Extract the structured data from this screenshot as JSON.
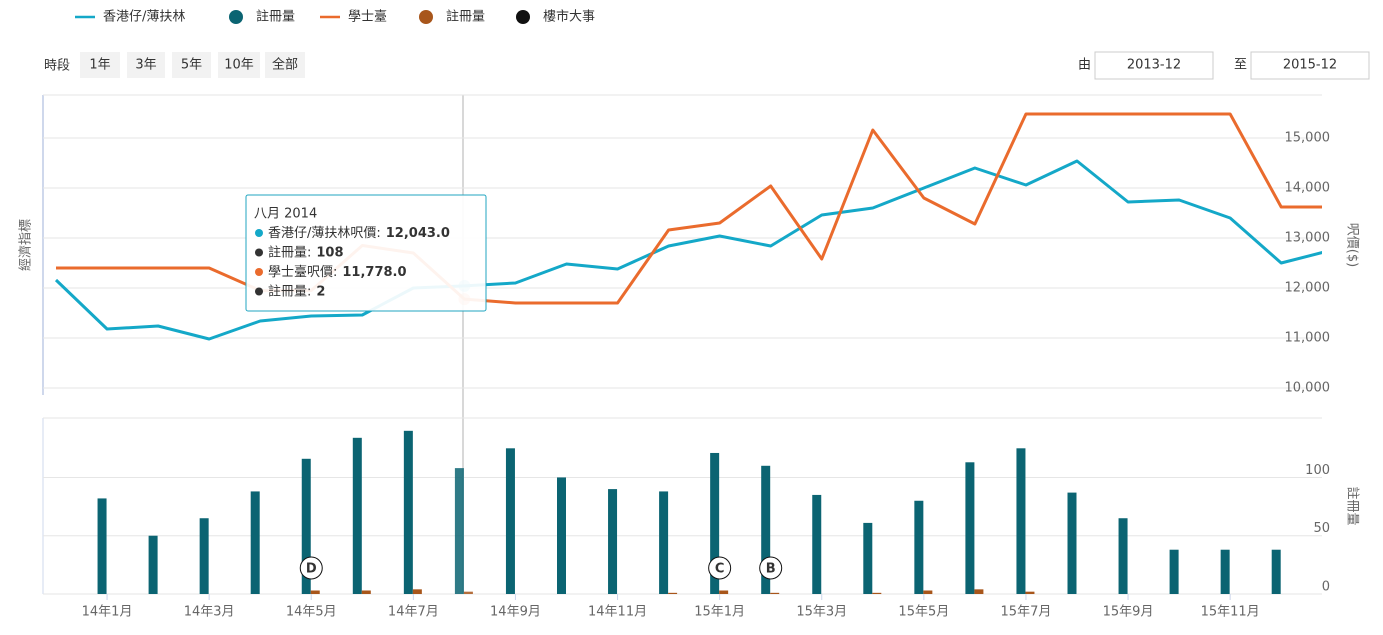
{
  "controls": {
    "period_label": "時段",
    "buttons": [
      "1年",
      "3年",
      "5年",
      "10年",
      "全部"
    ],
    "from_label": "由",
    "from": "2013-12",
    "to_label": "至",
    "to": "2015-12"
  },
  "chart_data": {
    "type": "line",
    "y_label": "經濟指標",
    "y2_label": "呎價($)",
    "y3_label": "註冊量",
    "categories": [
      null,
      "14年1月",
      null,
      "14年3月",
      null,
      "14年5月",
      null,
      "14年7月",
      null,
      "14年9月",
      null,
      "14年11月",
      null,
      "15年1月",
      null,
      "15年3月",
      null,
      "15年5月",
      null,
      "15年7月",
      null,
      "15年9月",
      null,
      "15年11月",
      null,
      null
    ],
    "series": [
      {
        "name": "香港仔/薄扶林",
        "color": "#14a8c8",
        "type": "line",
        "values": [
          12160,
          11180,
          11240,
          10980,
          11340,
          11440,
          11460,
          12000,
          12043,
          12100,
          12480,
          12380,
          12840,
          13040,
          12840,
          13460,
          13600,
          14000,
          14400,
          14060,
          14540,
          13720,
          13760,
          13400,
          12500,
          12760
        ]
      },
      {
        "name": "註冊量",
        "color": "#0b6472",
        "type": "bar",
        "axis": "y2",
        "values": [
          null,
          82,
          50,
          65,
          88,
          116,
          134,
          140,
          108,
          125,
          100,
          90,
          88,
          121,
          110,
          85,
          61,
          80,
          113,
          125,
          87,
          65,
          38,
          38,
          38,
          null
        ]
      },
      {
        "name": "學士臺",
        "color": "#ea6b2d",
        "type": "line",
        "values": [
          12400,
          12400,
          12400,
          12400,
          11950,
          11950,
          12850,
          12700,
          11778,
          11700,
          11700,
          11700,
          13160,
          13300,
          14040,
          12580,
          15160,
          13800,
          13280,
          15480,
          15480,
          15480,
          15480,
          15480,
          13620,
          13620
        ]
      },
      {
        "name": "註冊量",
        "color": "#a8561b",
        "type": "bar",
        "axis": "y2",
        "values": [
          null,
          null,
          null,
          null,
          null,
          3,
          3,
          4,
          2,
          null,
          null,
          null,
          1,
          3,
          1,
          null,
          1,
          3,
          4,
          2,
          null,
          null,
          null,
          null,
          null,
          null
        ]
      }
    ],
    "events": {
      "name": "樓市大事",
      "color": "#111111",
      "points": [
        {
          "index": 5,
          "label": "D"
        },
        {
          "index": 13,
          "label": "C"
        },
        {
          "index": 14,
          "label": "B"
        }
      ]
    },
    "ylim": [
      9860,
      15860
    ],
    "yticks": [
      {
        "value": 10000,
        "label": "10,000"
      },
      {
        "value": 11000,
        "label": "11,000"
      },
      {
        "value": 12000,
        "label": "12,000"
      },
      {
        "value": 13000,
        "label": "13,000"
      },
      {
        "value": 14000,
        "label": "14,000"
      },
      {
        "value": 15000,
        "label": "15,000"
      }
    ],
    "y2lim": [
      0,
      151
    ],
    "y2ticks": [
      0,
      50,
      100
    ],
    "grid": true,
    "tooltip": {
      "title": "八月 2014",
      "rows": [
        {
          "label": "香港仔/薄扶林呎價:",
          "value": "12,043.0"
        },
        {
          "label": "註冊量:",
          "value": "108"
        },
        {
          "label": "學士臺呎價:",
          "value": "11,778.0"
        },
        {
          "label": "註冊量:",
          "value": "2"
        }
      ]
    }
  }
}
